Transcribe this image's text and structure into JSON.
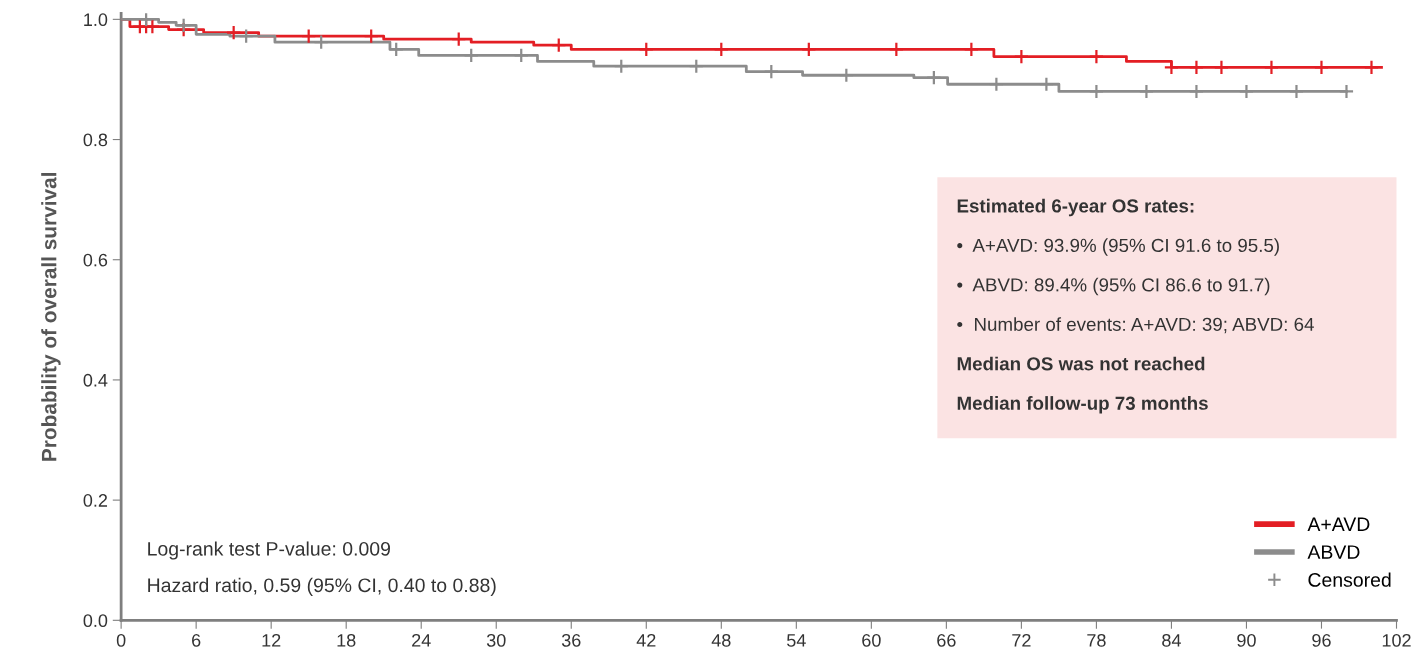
{
  "chart_data": {
    "type": "step",
    "ylabel": "Probability of overall survival",
    "xlim": [
      0,
      102
    ],
    "xticks": [
      0,
      6,
      12,
      18,
      24,
      30,
      36,
      42,
      48,
      54,
      60,
      66,
      72,
      78,
      84,
      90,
      96,
      102
    ],
    "ylim": [
      0,
      1.01
    ],
    "yticks": [
      {
        "value": 0,
        "label": "0.0"
      },
      {
        "value": 0.2,
        "label": "0.2"
      },
      {
        "value": 0.4,
        "label": "0.4"
      },
      {
        "value": 0.6,
        "label": "0.6"
      },
      {
        "value": 0.8,
        "label": "0.8"
      },
      {
        "value": 1.0,
        "label": "1.0"
      }
    ],
    "grid": false,
    "legend": "bottom right",
    "series": [
      {
        "name": "A+AVD",
        "color": "#e31e24",
        "x": [
          0,
          0.7,
          3.8,
          6.6,
          11,
          21,
          28,
          33,
          36,
          69.8,
          80.4,
          84,
          100.8
        ],
        "values": [
          1.0,
          0.988,
          0.983,
          0.978,
          0.972,
          0.967,
          0.962,
          0.957,
          0.95,
          0.938,
          0.93,
          0.92,
          0.92
        ]
      },
      {
        "name": "ABVD",
        "color": "#8c8c8c",
        "x": [
          0,
          3,
          4.4,
          6,
          8.7,
          12.3,
          21.5,
          23.8,
          33.3,
          37.8,
          50,
          54.5,
          63.4,
          66.1,
          75,
          98
        ],
        "values": [
          1.0,
          0.995,
          0.99,
          0.975,
          0.972,
          0.962,
          0.95,
          0.94,
          0.93,
          0.922,
          0.913,
          0.907,
          0.903,
          0.892,
          0.88,
          0.88
        ]
      },
      {
        "name": "Censored",
        "type": "scatter",
        "marker": "cross",
        "color": "#8c8c8c",
        "x": [
          1.5,
          2,
          2.5,
          5,
          9,
          15,
          20,
          27,
          35,
          42,
          48,
          55,
          62,
          68,
          72,
          78,
          84,
          86,
          88,
          92,
          96,
          100,
          2,
          5,
          10,
          16,
          22,
          28,
          32,
          40,
          46,
          52,
          58,
          65,
          70,
          74,
          78,
          82,
          86,
          90,
          94,
          98
        ],
        "values": [
          0.988,
          0.988,
          0.988,
          0.983,
          0.978,
          0.972,
          0.972,
          0.967,
          0.957,
          0.95,
          0.95,
          0.95,
          0.95,
          0.95,
          0.938,
          0.938,
          0.92,
          0.92,
          0.92,
          0.92,
          0.92,
          0.92,
          1.0,
          0.99,
          0.972,
          0.962,
          0.95,
          0.94,
          0.94,
          0.922,
          0.922,
          0.913,
          0.907,
          0.903,
          0.892,
          0.892,
          0.88,
          0.88,
          0.88,
          0.88,
          0.88,
          0.88
        ],
        "colors": [
          "#e31e24",
          "#e31e24",
          "#e31e24",
          "#e31e24",
          "#e31e24",
          "#e31e24",
          "#e31e24",
          "#e31e24",
          "#e31e24",
          "#e31e24",
          "#e31e24",
          "#e31e24",
          "#e31e24",
          "#e31e24",
          "#e31e24",
          "#e31e24",
          "#e31e24",
          "#e31e24",
          "#e31e24",
          "#e31e24",
          "#e31e24",
          "#e31e24",
          "#8c8c8c",
          "#8c8c8c",
          "#8c8c8c",
          "#8c8c8c",
          "#8c8c8c",
          "#8c8c8c",
          "#8c8c8c",
          "#8c8c8c",
          "#8c8c8c",
          "#8c8c8c",
          "#8c8c8c",
          "#8c8c8c",
          "#8c8c8c",
          "#8c8c8c",
          "#8c8c8c",
          "#8c8c8c",
          "#8c8c8c",
          "#8c8c8c",
          "#8c8c8c",
          "#8c8c8c"
        ]
      }
    ],
    "annotations": [
      "Estimated 6-year OS rates:",
      "•  A+AVD: 93.9% (95% CI 91.6 to 95.5)",
      "•  ABVD: 89.4% (95% CI 86.6 to 91.7)",
      "•  Number of events: A+AVD: 39; ABVD: 64",
      "Median OS was not reached",
      "Median follow-up 73 months",
      "Log-rank test P-value: 0.009",
      "Hazard ratio, 0.59 (95% CI, 0.40 to 0.88)"
    ]
  }
}
